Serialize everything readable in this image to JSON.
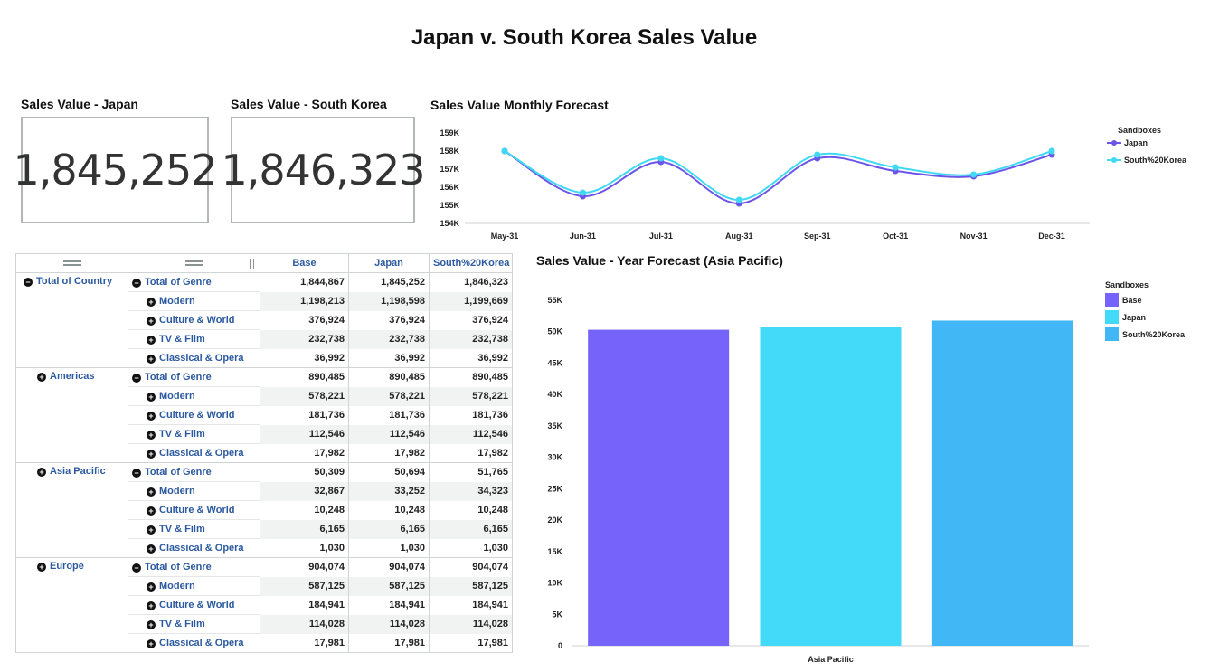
{
  "page": {
    "title": "Japan v. South Korea Sales Value"
  },
  "kpis": [
    {
      "title": "Sales Value - Japan",
      "value": "1,845,252"
    },
    {
      "title": "Sales Value - South Korea",
      "value": "1,846,323"
    }
  ],
  "line_chart": {
    "title": "Sales Value Monthly Forecast",
    "legend_title": "Sandboxes",
    "colors": {
      "Japan": "#6b55e8",
      "South%20Korea": "#3fd9f4"
    },
    "chart_data": {
      "type": "line",
      "categories": [
        "May-31",
        "Jun-31",
        "Jul-31",
        "Aug-31",
        "Sep-31",
        "Oct-31",
        "Nov-31",
        "Dec-31"
      ],
      "series": [
        {
          "name": "Japan",
          "values": [
            158.0,
            155.5,
            157.4,
            155.1,
            157.6,
            156.9,
            156.6,
            157.8
          ]
        },
        {
          "name": "South%20Korea",
          "values": [
            158.0,
            155.7,
            157.6,
            155.3,
            157.8,
            157.1,
            156.7,
            158.0
          ]
        }
      ],
      "ylabel": "",
      "xlabel": "",
      "yticks": [
        "154K",
        "155K",
        "156K",
        "157K",
        "158K",
        "159K"
      ],
      "ylim": [
        154,
        159
      ]
    }
  },
  "bar_chart": {
    "title": "Sales Value - Year Forecast (Asia Pacific)",
    "legend_title": "Sandboxes",
    "chart_data": {
      "type": "bar",
      "categories": [
        "Asia Pacific"
      ],
      "series": [
        {
          "name": "Base",
          "values": [
            50309
          ],
          "color": "#7563fa"
        },
        {
          "name": "Japan",
          "values": [
            50694
          ],
          "color": "#43d9f9"
        },
        {
          "name": "South%20Korea",
          "values": [
            51765
          ],
          "color": "#42b7f6"
        }
      ],
      "yticks": [
        "0",
        "5K",
        "10K",
        "15K",
        "20K",
        "25K",
        "30K",
        "35K",
        "40K",
        "45K",
        "50K",
        "55K"
      ],
      "ylim": [
        0,
        55000
      ],
      "xlabel": "",
      "ylabel": ""
    }
  },
  "pivot": {
    "headers": [
      "Base",
      "Japan",
      "South%20Korea"
    ],
    "groups": [
      {
        "country": "Total of Country",
        "expanded": true,
        "rows": [
          {
            "genre": "Total of Genre",
            "total": true,
            "values": [
              "1,844,867",
              "1,845,252",
              "1,846,323"
            ]
          },
          {
            "genre": "Modern",
            "values": [
              "1,198,213",
              "1,198,598",
              "1,199,669"
            ]
          },
          {
            "genre": "Culture & World",
            "values": [
              "376,924",
              "376,924",
              "376,924"
            ]
          },
          {
            "genre": "TV & Film",
            "values": [
              "232,738",
              "232,738",
              "232,738"
            ]
          },
          {
            "genre": "Classical & Opera",
            "values": [
              "36,992",
              "36,992",
              "36,992"
            ]
          }
        ]
      },
      {
        "country": "Americas",
        "expanded": false,
        "rows": [
          {
            "genre": "Total of Genre",
            "total": true,
            "values": [
              "890,485",
              "890,485",
              "890,485"
            ]
          },
          {
            "genre": "Modern",
            "values": [
              "578,221",
              "578,221",
              "578,221"
            ]
          },
          {
            "genre": "Culture & World",
            "values": [
              "181,736",
              "181,736",
              "181,736"
            ]
          },
          {
            "genre": "TV & Film",
            "values": [
              "112,546",
              "112,546",
              "112,546"
            ]
          },
          {
            "genre": "Classical & Opera",
            "values": [
              "17,982",
              "17,982",
              "17,982"
            ]
          }
        ]
      },
      {
        "country": "Asia Pacific",
        "expanded": false,
        "rows": [
          {
            "genre": "Total of Genre",
            "total": true,
            "values": [
              "50,309",
              "50,694",
              "51,765"
            ]
          },
          {
            "genre": "Modern",
            "values": [
              "32,867",
              "33,252",
              "34,323"
            ]
          },
          {
            "genre": "Culture & World",
            "values": [
              "10,248",
              "10,248",
              "10,248"
            ]
          },
          {
            "genre": "TV & Film",
            "values": [
              "6,165",
              "6,165",
              "6,165"
            ]
          },
          {
            "genre": "Classical & Opera",
            "values": [
              "1,030",
              "1,030",
              "1,030"
            ]
          }
        ]
      },
      {
        "country": "Europe",
        "expanded": false,
        "rows": [
          {
            "genre": "Total of Genre",
            "total": true,
            "values": [
              "904,074",
              "904,074",
              "904,074"
            ]
          },
          {
            "genre": "Modern",
            "values": [
              "587,125",
              "587,125",
              "587,125"
            ]
          },
          {
            "genre": "Culture & World",
            "values": [
              "184,941",
              "184,941",
              "184,941"
            ]
          },
          {
            "genre": "TV & Film",
            "values": [
              "114,028",
              "114,028",
              "114,028"
            ]
          },
          {
            "genre": "Classical & Opera",
            "values": [
              "17,981",
              "17,981",
              "17,981"
            ]
          }
        ]
      }
    ]
  }
}
